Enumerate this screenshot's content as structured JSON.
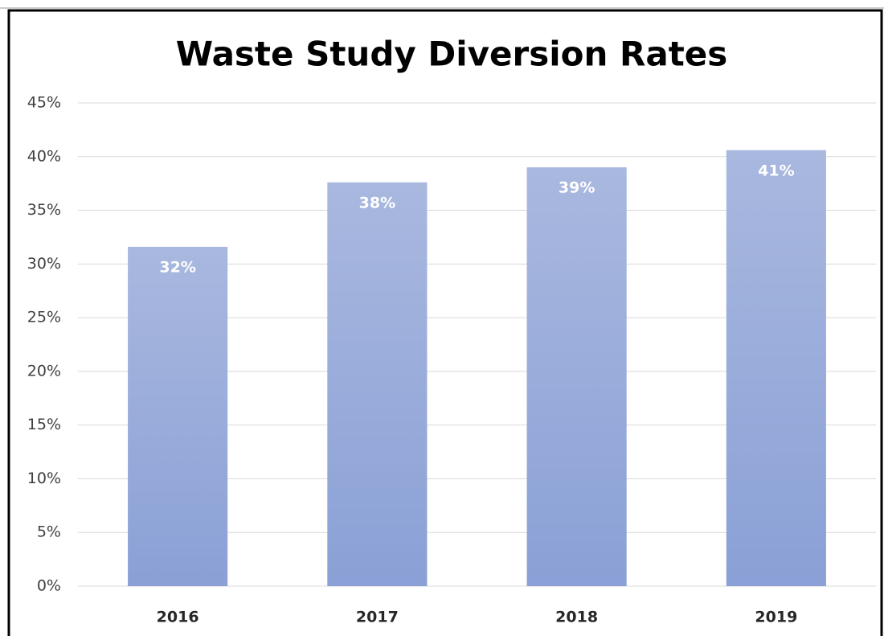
{
  "chart_data": {
    "type": "bar",
    "title": "Waste Study Diversion Rates",
    "categories": [
      "2016",
      "2017",
      "2018",
      "2019"
    ],
    "values": [
      31.6,
      37.6,
      39.0,
      40.6
    ],
    "value_labels": [
      "32%",
      "38%",
      "39%",
      "41%"
    ],
    "color": "#97a9da",
    "ylim": [
      0,
      45
    ],
    "yticks": [
      {
        "value": 0,
        "label": "0%"
      },
      {
        "value": 5,
        "label": "5%"
      },
      {
        "value": 10,
        "label": "10%"
      },
      {
        "value": 15,
        "label": "15%"
      },
      {
        "value": 20,
        "label": "20%"
      },
      {
        "value": 25,
        "label": "25%"
      },
      {
        "value": 30,
        "label": "30%"
      },
      {
        "value": 35,
        "label": "35%"
      },
      {
        "value": 40,
        "label": "40%"
      },
      {
        "value": 45,
        "label": "45%"
      }
    ],
    "grid": true
  }
}
